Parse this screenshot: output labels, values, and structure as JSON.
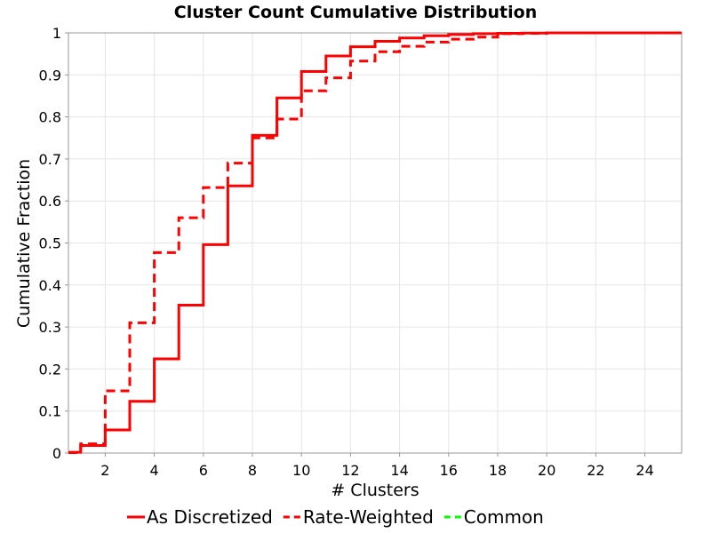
{
  "chart_data": {
    "type": "line",
    "title": "Cluster Count Cumulative Distribution",
    "xlabel": "# Clusters",
    "ylabel": "Cumulative Fraction",
    "xlim": [
      0.5,
      25.5
    ],
    "ylim": [
      0,
      1
    ],
    "x_ticks": [
      "2",
      "4",
      "6",
      "8",
      "10",
      "12",
      "14",
      "16",
      "18",
      "20",
      "22",
      "24"
    ],
    "y_ticks": [
      "0",
      "0.1",
      "0.2",
      "0.3",
      "0.4",
      "0.5",
      "0.6",
      "0.7",
      "0.8",
      "0.9",
      "1"
    ],
    "grid": true,
    "legend_position": "bottom",
    "series": [
      {
        "name": "As Discretized",
        "color": "#ff0000",
        "style": "solid",
        "step": true,
        "x": [
          0.5,
          1,
          2,
          3,
          4,
          5,
          6,
          7,
          8,
          9,
          10,
          11,
          12,
          13,
          14,
          15,
          16,
          17,
          18,
          19,
          20,
          25.5
        ],
        "y": [
          0.002,
          0.018,
          0.055,
          0.123,
          0.224,
          0.352,
          0.496,
          0.636,
          0.756,
          0.845,
          0.908,
          0.945,
          0.967,
          0.98,
          0.988,
          0.993,
          0.996,
          0.998,
          0.999,
          0.9995,
          1.0,
          1.0
        ]
      },
      {
        "name": "Rate-Weighted",
        "color": "#ff0000",
        "style": "dashed",
        "step": true,
        "x": [
          0.5,
          1,
          2,
          3,
          4,
          5,
          6,
          7,
          8,
          9,
          10,
          11,
          12,
          13,
          14,
          15,
          16,
          17,
          18,
          19,
          20,
          25.5
        ],
        "y": [
          0.001,
          0.022,
          0.148,
          0.31,
          0.477,
          0.56,
          0.632,
          0.69,
          0.75,
          0.795,
          0.862,
          0.893,
          0.933,
          0.955,
          0.968,
          0.978,
          0.985,
          0.99,
          0.998,
          0.999,
          1.0,
          1.0
        ]
      },
      {
        "name": "Common",
        "color": "#00ff00",
        "style": "dashed",
        "step": true,
        "x": [],
        "y": []
      }
    ]
  }
}
